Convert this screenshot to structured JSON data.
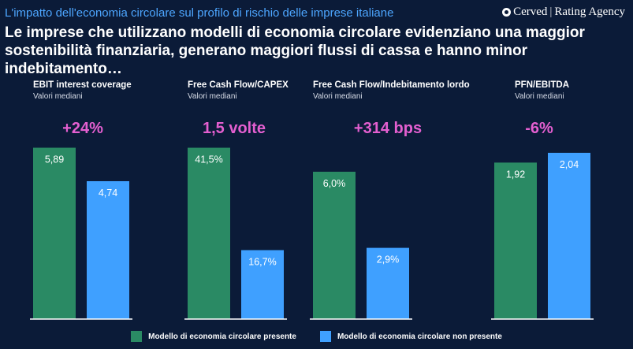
{
  "header": {
    "subtitle": "L'impatto dell'economia circolare sul profilo di rischio delle imprese italiane",
    "logo_left": "Cerved",
    "logo_right": "Rating Agency",
    "headline": "Le imprese che utilizzano modelli di economia circolare evidenziano una maggior sostenibilità finanziaria, generano maggiori flussi di cassa e hanno minor indebitamento…"
  },
  "colors": {
    "background": "#0b1b38",
    "green": "#2a8a64",
    "blue": "#3fa0ff",
    "highlight": "#e45fd0",
    "axis": "#ffffff"
  },
  "chart_data": [
    {
      "type": "bar",
      "title": "EBIT interest coverage",
      "subtitle": "Valori mediani",
      "highlight": "+24%",
      "series": [
        {
          "name": "Modello di economia circolare presente",
          "value": 5.89,
          "label": "5,89"
        },
        {
          "name": "Modello di economia circolare non presente",
          "value": 4.74,
          "label": "4,74"
        }
      ],
      "ymax": 6.5
    },
    {
      "type": "bar",
      "title": "Free Cash Flow/CAPEX",
      "subtitle": "Valori mediani",
      "highlight": "1,5 volte",
      "series": [
        {
          "name": "Modello di economia circolare presente",
          "value": 41.5,
          "label": "41,5%"
        },
        {
          "name": "Modello di economia circolare non presente",
          "value": 16.7,
          "label": "16,7%"
        }
      ],
      "ymax": 45.8
    },
    {
      "type": "bar",
      "title": "Free Cash Flow/Indebitamento lordo",
      "subtitle": "Valori mediani",
      "highlight": "+314 bps",
      "series": [
        {
          "name": "Modello di economia circolare presente",
          "value": 6.0,
          "label": "6,0%"
        },
        {
          "name": "Modello di economia circolare non presente",
          "value": 2.9,
          "label": "2,9%"
        }
      ],
      "ymax": 7.7
    },
    {
      "type": "bar",
      "title": "PFN/EBITDA",
      "subtitle": "Valori mediani",
      "highlight": "-6%",
      "series": [
        {
          "name": "Modello di economia circolare presente",
          "value": 1.92,
          "label": "1,92"
        },
        {
          "name": "Modello di economia circolare non presente",
          "value": 2.04,
          "label": "2,04"
        }
      ],
      "ymax": 2.32
    }
  ],
  "legend": {
    "present": "Modello di economia circolare presente",
    "absent": "Modello di economia circolare non presente"
  }
}
